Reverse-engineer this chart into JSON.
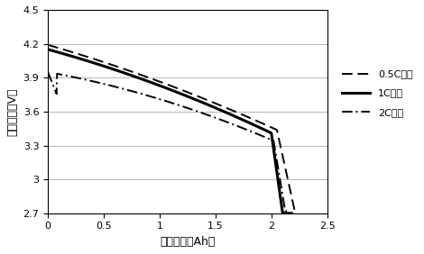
{
  "xlabel": "放电容量（Ah）",
  "ylabel": "电池电压（V）",
  "xlim": [
    0,
    2.5
  ],
  "ylim": [
    2.7,
    4.5
  ],
  "xticks": [
    0,
    0.5,
    1.0,
    1.5,
    2.0,
    2.5
  ],
  "yticks": [
    2.7,
    3.0,
    3.3,
    3.6,
    3.9,
    4.2,
    4.5
  ],
  "xtick_labels": [
    "0",
    "0.5",
    "1",
    "1.5",
    "2",
    "2.5"
  ],
  "ytick_labels": [
    "2.7",
    "3",
    "3.3",
    "3.6",
    "3.9",
    "4.2",
    "4.5"
  ],
  "legend": [
    "0.5C放电",
    "1C放电",
    "2C放电"
  ],
  "line_color": "#000000",
  "background": "#ffffff",
  "figsize": [
    4.7,
    2.82
  ],
  "dpi": 100
}
